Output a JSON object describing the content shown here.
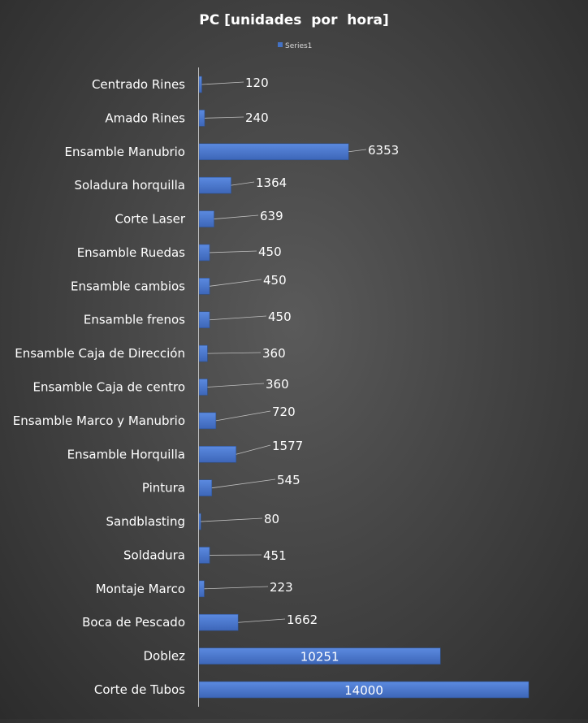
{
  "chart_data": {
    "type": "bar",
    "orientation": "horizontal",
    "title": "PC [unidades  por  hora]",
    "legend": {
      "position": "top",
      "entries": [
        "Series1"
      ]
    },
    "categories": [
      "Centrado Rines",
      "Amado Rines",
      "Ensamble Manubrio",
      "Soladura horquilla",
      "Corte Laser",
      "Ensamble Ruedas",
      "Ensamble cambios",
      "Ensamble frenos",
      "Ensamble Caja de Dirección",
      "Ensamble Caja de centro",
      "Ensamble Marco y Manubrio",
      "Ensamble Horquilla",
      "Pintura",
      "Sandblasting",
      "Soldadura",
      "Montaje Marco",
      "Boca de Pescado",
      "Doblez",
      "Corte de Tubos"
    ],
    "series": [
      {
        "name": "Series1",
        "color": "#4472c4",
        "values": [
          120,
          240,
          6353,
          1364,
          639,
          450,
          450,
          450,
          360,
          360,
          720,
          1577,
          545,
          80,
          451,
          223,
          1662,
          10251,
          14000
        ]
      }
    ],
    "data_labels": [
      "120",
      "240",
      "6353",
      "1364",
      "639",
      "450",
      "450",
      "450",
      "360",
      "360",
      "720",
      "1577",
      "545",
      "80",
      "451",
      "223",
      "1662",
      "10251",
      "14000"
    ],
    "xlim": [
      0,
      14500
    ],
    "grid": false,
    "axis_color": "#bfbfbf",
    "text_color": "#ffffff"
  }
}
